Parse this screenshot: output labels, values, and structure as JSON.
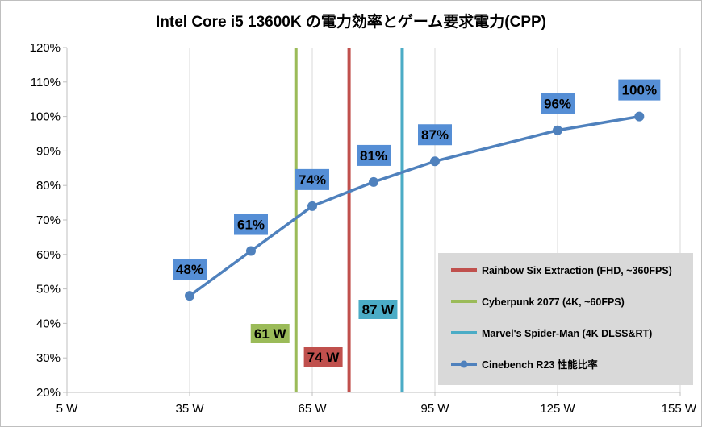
{
  "chart_data": {
    "type": "line",
    "title": "Intel Core i5 13600K の電力効率とゲーム要求電力(CPP)",
    "xlabel": "",
    "ylabel": "",
    "xlim": [
      5,
      155
    ],
    "ylim": [
      20,
      120
    ],
    "x_ticks": [
      "5 W",
      "35 W",
      "65 W",
      "95 W",
      "125 W",
      "155 W"
    ],
    "x_tick_values": [
      5,
      35,
      65,
      95,
      125,
      155
    ],
    "y_ticks": [
      "20%",
      "30%",
      "40%",
      "50%",
      "60%",
      "70%",
      "80%",
      "90%",
      "100%",
      "110%",
      "120%"
    ],
    "y_tick_values": [
      20,
      30,
      40,
      50,
      60,
      70,
      80,
      90,
      100,
      110,
      120
    ],
    "grid": "vertical",
    "legend_position": "bottom-right",
    "series": [
      {
        "name": "Cinebench R23 性能比率",
        "color": "#4f81bd",
        "x": [
          35,
          50,
          65,
          80,
          95,
          125,
          145
        ],
        "y": [
          48,
          61,
          74,
          81,
          87,
          96,
          100
        ],
        "labels": [
          "48%",
          "61%",
          "74%",
          "81%",
          "87%",
          "96%",
          "100%"
        ]
      }
    ],
    "reference_lines": [
      {
        "name": "Rainbow Six Extraction (FHD, ~360FPS)",
        "x": 74,
        "color": "#c0504d",
        "label": "74 W"
      },
      {
        "name": "Cyberpunk 2077 (4K, ~60FPS)",
        "x": 61,
        "color": "#9bbb59",
        "label": "61 W"
      },
      {
        "name": "Marvel's Spider-Man (4K DLSS&RT)",
        "x": 87,
        "color": "#4bacc6",
        "label": "87 W"
      }
    ],
    "legend": [
      {
        "name": "Rainbow Six Extraction (FHD, ~360FPS)",
        "color": "#c0504d",
        "marker": "line"
      },
      {
        "name": "Cyberpunk 2077 (4K, ~60FPS)",
        "color": "#9bbb59",
        "marker": "line"
      },
      {
        "name": "Marvel's Spider-Man (4K DLSS&RT)",
        "color": "#4bacc6",
        "marker": "line"
      },
      {
        "name": "Cinebench R23 性能比率",
        "color": "#4f81bd",
        "marker": "line-dot"
      }
    ],
    "colors": {
      "label_fill": "#558ed5",
      "legend_bg": "#d9d9d9",
      "grid": "#d9d9d9",
      "axis": "#bfbfbf"
    }
  }
}
